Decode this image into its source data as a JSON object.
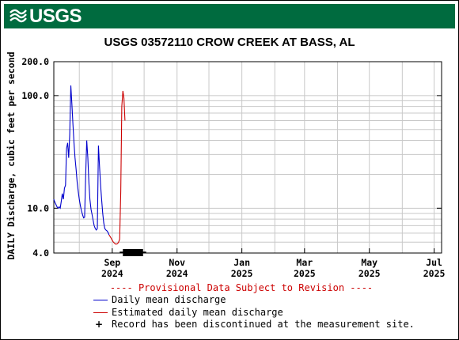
{
  "banner": {
    "logo_text": "USGS",
    "logo_icon": "usgs-wave-icon",
    "color": "#006b3f"
  },
  "chart_data": {
    "type": "line",
    "title": "USGS 03572110 CROW CREEK AT BASS, AL",
    "ylabel": "DAILY Discharge, cubic feet per second",
    "xlabel": "",
    "yscale": "log",
    "ylim": [
      4,
      200
    ],
    "xlim": [
      "2024-07-08",
      "2025-07-08"
    ],
    "y_ticks": [
      {
        "value": 4,
        "label": "4.0"
      },
      {
        "value": 10,
        "label": "10.0"
      },
      {
        "value": 100,
        "label": "100.0"
      },
      {
        "value": 200,
        "label": "200.0"
      }
    ],
    "x_ticks": [
      {
        "date": "2024-09-01",
        "label": [
          "Sep",
          "2024"
        ]
      },
      {
        "date": "2024-11-01",
        "label": [
          "Nov",
          "2024"
        ]
      },
      {
        "date": "2025-01-01",
        "label": [
          "Jan",
          "2025"
        ]
      },
      {
        "date": "2025-03-01",
        "label": [
          "Mar",
          "2025"
        ]
      },
      {
        "date": "2025-05-01",
        "label": [
          "May",
          "2025"
        ]
      },
      {
        "date": "2025-07-01",
        "label": [
          "Jul",
          "2025"
        ]
      }
    ],
    "grid": true,
    "series": [
      {
        "name": "Daily mean discharge",
        "color": "#0000cc",
        "points": [
          [
            "2024-07-08",
            12.0
          ],
          [
            "2024-07-09",
            11.3
          ],
          [
            "2024-07-10",
            10.8
          ],
          [
            "2024-07-11",
            10.3
          ],
          [
            "2024-07-12",
            10.0
          ],
          [
            "2024-07-13",
            10.3
          ],
          [
            "2024-07-14",
            10.0
          ],
          [
            "2024-07-15",
            11.5
          ],
          [
            "2024-07-16",
            13.5
          ],
          [
            "2024-07-17",
            12.0
          ],
          [
            "2024-07-18",
            15.0
          ],
          [
            "2024-07-19",
            16.0
          ],
          [
            "2024-07-20",
            34.0
          ],
          [
            "2024-07-21",
            38.0
          ],
          [
            "2024-07-22",
            28.0
          ],
          [
            "2024-07-23",
            45.0
          ],
          [
            "2024-07-24",
            123.0
          ],
          [
            "2024-07-25",
            85.0
          ],
          [
            "2024-07-26",
            55.0
          ],
          [
            "2024-07-27",
            38.0
          ],
          [
            "2024-07-28",
            28.0
          ],
          [
            "2024-07-29",
            22.0
          ],
          [
            "2024-07-30",
            17.0
          ],
          [
            "2024-07-31",
            14.0
          ],
          [
            "2024-08-01",
            12.0
          ],
          [
            "2024-08-02",
            10.5
          ],
          [
            "2024-08-03",
            9.5
          ],
          [
            "2024-08-04",
            8.8
          ],
          [
            "2024-08-05",
            8.2
          ],
          [
            "2024-08-06",
            8.3
          ],
          [
            "2024-08-07",
            20.0
          ],
          [
            "2024-08-08",
            40.0
          ],
          [
            "2024-08-09",
            28.0
          ],
          [
            "2024-08-10",
            17.0
          ],
          [
            "2024-08-11",
            12.0
          ],
          [
            "2024-08-12",
            9.8
          ],
          [
            "2024-08-13",
            8.8
          ],
          [
            "2024-08-14",
            7.8
          ],
          [
            "2024-08-15",
            7.0
          ],
          [
            "2024-08-16",
            6.6
          ],
          [
            "2024-08-17",
            6.4
          ],
          [
            "2024-08-18",
            6.6
          ],
          [
            "2024-08-19",
            36.0
          ],
          [
            "2024-08-20",
            24.0
          ],
          [
            "2024-08-21",
            16.0
          ],
          [
            "2024-08-22",
            12.0
          ],
          [
            "2024-08-23",
            9.0
          ],
          [
            "2024-08-24",
            7.4
          ],
          [
            "2024-08-25",
            6.6
          ],
          [
            "2024-08-26",
            6.4
          ],
          [
            "2024-08-27",
            6.3
          ],
          [
            "2024-08-28",
            6.1
          ],
          [
            "2024-08-29",
            5.8
          ]
        ]
      },
      {
        "name": "Estimated daily mean discharge",
        "color": "#cc0000",
        "points": [
          [
            "2024-08-29",
            5.8
          ],
          [
            "2024-08-30",
            5.6
          ],
          [
            "2024-08-31",
            5.4
          ],
          [
            "2024-09-01",
            5.2
          ],
          [
            "2024-09-02",
            5.0
          ],
          [
            "2024-09-03",
            4.9
          ],
          [
            "2024-09-04",
            4.8
          ],
          [
            "2024-09-05",
            4.8
          ],
          [
            "2024-09-06",
            4.85
          ],
          [
            "2024-09-07",
            5.0
          ],
          [
            "2024-09-08",
            5.3
          ],
          [
            "2024-09-09",
            14.0
          ],
          [
            "2024-09-10",
            80.0
          ],
          [
            "2024-09-11",
            110.0
          ],
          [
            "2024-09-12",
            95.0
          ],
          [
            "2024-09-13",
            60.0
          ]
        ]
      }
    ],
    "markers": [
      {
        "name": "Record has been discontinued at the measurement site.",
        "start": "2024-09-11",
        "end": "2024-09-30"
      }
    ],
    "annotation": "---- Provisional Data Subject to Revision ----",
    "legend_position": "bottom"
  },
  "legend": {
    "provisional": "---- Provisional Data Subject to Revision ----",
    "daily": "Daily mean discharge",
    "estimated": "Estimated daily mean discharge",
    "discontinued": "Record has been discontinued at the measurement site.",
    "cross_symbol": "+"
  }
}
